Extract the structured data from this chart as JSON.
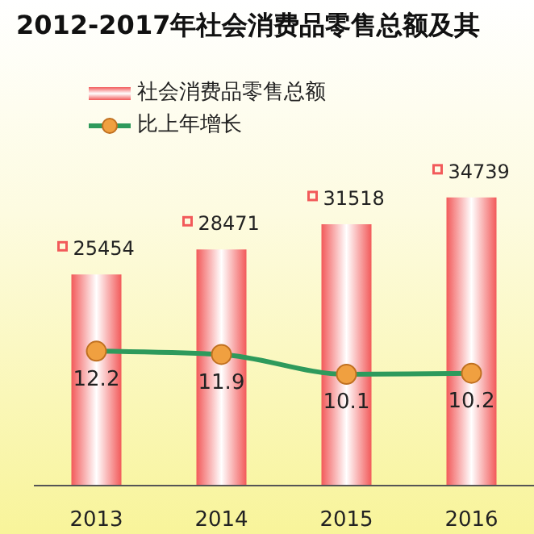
{
  "chart_data": {
    "type": "bar",
    "title": "2012-2017年社会消费品零售总额及其",
    "categories": [
      "2013",
      "2014",
      "2015",
      "2016"
    ],
    "series": [
      {
        "name": "社会消费品零售总额",
        "color": "#f25a5a",
        "values": [
          25454,
          28471,
          31518,
          34739
        ]
      },
      {
        "name": "比上年增长",
        "type": "line",
        "axis": "y2",
        "color": "#2e9a5c",
        "values": [
          12.2,
          11.9,
          10.1,
          10.2
        ]
      }
    ],
    "data_labels": true,
    "legend": "top left",
    "marker": "circle",
    "grid": false,
    "tick_labels": "x"
  }
}
